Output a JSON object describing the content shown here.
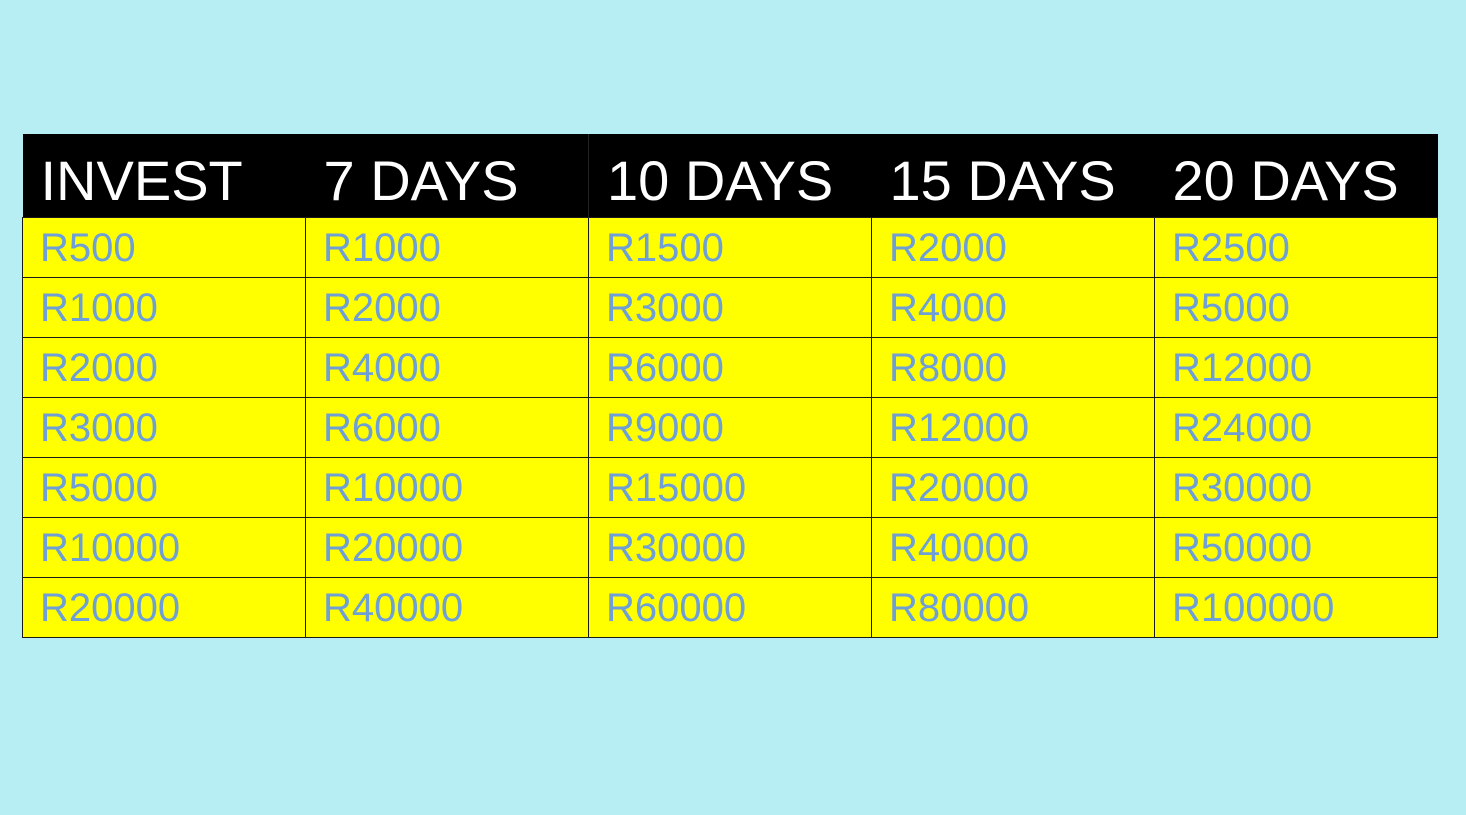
{
  "colors": {
    "background": "#b6eef4",
    "header_bg": "#000000",
    "header_text": "#ffffff",
    "cell_bg": "#ffff00",
    "cell_text": "#6e9fd6"
  },
  "table": {
    "headers": [
      "INVEST",
      "7 DAYS",
      "10 DAYS",
      "15 DAYS",
      "20 DAYS"
    ],
    "rows": [
      [
        "R500",
        "R1000",
        "R1500",
        "R2000",
        "R2500"
      ],
      [
        "R1000",
        "R2000",
        "R3000",
        "R4000",
        "R5000"
      ],
      [
        "R2000",
        "R4000",
        "R6000",
        "R8000",
        "R12000"
      ],
      [
        "R3000",
        "R6000",
        "R9000",
        "R12000",
        "R24000"
      ],
      [
        "R5000",
        "R10000",
        "R15000",
        "R20000",
        "R30000"
      ],
      [
        "R10000",
        "R20000",
        "R30000",
        "R40000",
        "R50000"
      ],
      [
        "R20000",
        "R40000",
        "R60000",
        "R80000",
        "R100000"
      ]
    ]
  }
}
